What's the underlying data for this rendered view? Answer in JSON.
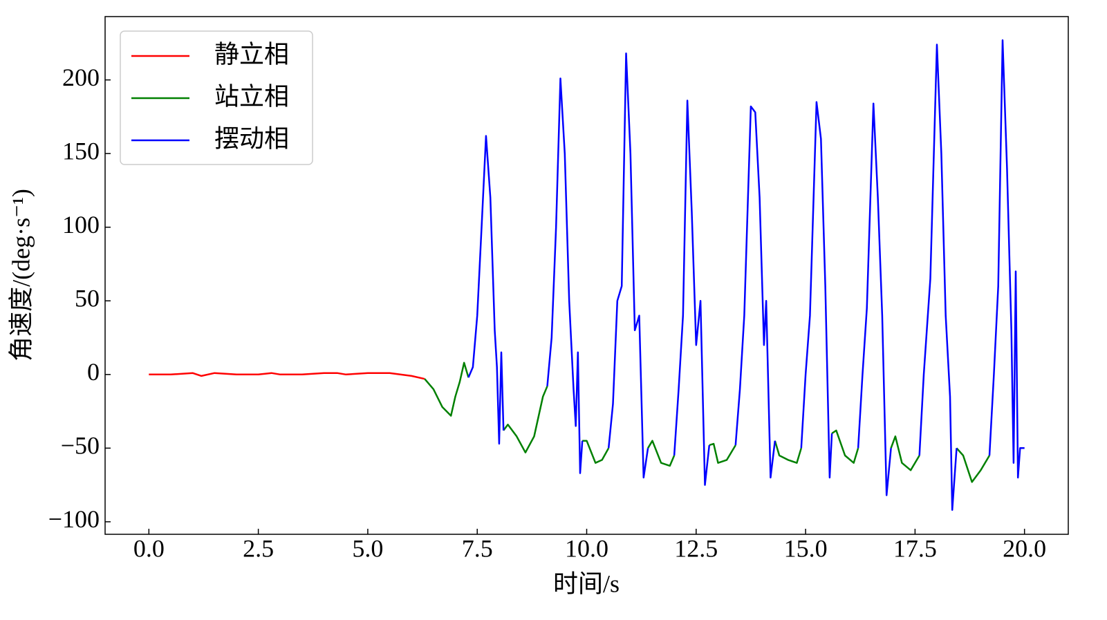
{
  "chart_data": {
    "type": "line",
    "xlabel": "时间/s",
    "ylabel": "角速度/(deg·s⁻¹)",
    "xlim": [
      -1.0,
      21.0
    ],
    "ylim": [
      -108.5,
      243
    ],
    "xticks": [
      {
        "value": 0,
        "label": "0.0"
      },
      {
        "value": 2.5,
        "label": "2.5"
      },
      {
        "value": 5,
        "label": "5.0"
      },
      {
        "value": 7.5,
        "label": "7.5"
      },
      {
        "value": 10,
        "label": "10.0"
      },
      {
        "value": 12.5,
        "label": "12.5"
      },
      {
        "value": 15,
        "label": "15.0"
      },
      {
        "value": 17.5,
        "label": "17.5"
      },
      {
        "value": 20,
        "label": "20.0"
      }
    ],
    "yticks": [
      {
        "value": -100,
        "label": "−100"
      },
      {
        "value": -50,
        "label": "−50"
      },
      0,
      50,
      100,
      150,
      200
    ],
    "legend": "upper left",
    "series": [
      {
        "name": "静立相",
        "color": "#ff0000",
        "x": [
          0,
          0.5,
          1,
          1.2,
          1.5,
          2,
          2.5,
          2.8,
          3,
          3.5,
          4,
          4.3,
          4.5,
          5,
          5.5,
          6,
          6.3
        ],
        "values": [
          0,
          0,
          1,
          -1,
          1,
          0,
          0,
          1,
          0,
          0,
          1,
          1,
          0,
          1,
          1,
          -1,
          -3
        ]
      },
      {
        "name": "站立相",
        "color": "#008000",
        "x": [
          6.3,
          6.5,
          6.7,
          6.9,
          7.0,
          7.1,
          7.2,
          7.3,
          null,
          8.1,
          8.2,
          8.4,
          8.6,
          8.8,
          9.0,
          9.1,
          null,
          9.9,
          10.0,
          10.2,
          10.35,
          10.5,
          null,
          11.4,
          11.5,
          11.7,
          11.9,
          12.0,
          null,
          12.8,
          12.9,
          13.0,
          13.2,
          13.4,
          null,
          14.3,
          14.4,
          14.6,
          14.8,
          14.9,
          null,
          15.6,
          15.7,
          15.9,
          16.1,
          16.2,
          null,
          16.95,
          17.05,
          17.2,
          17.4,
          17.6,
          null,
          18.45,
          18.6,
          18.8,
          19.0,
          19.2
        ],
        "values": [
          -3,
          -10,
          -22,
          -28,
          -15,
          -5,
          8,
          -2,
          null,
          -38,
          -34,
          -42,
          -53,
          -42,
          -15,
          -8,
          null,
          -45,
          -45,
          -60,
          -58,
          -50,
          null,
          -50,
          -45,
          -60,
          -62,
          -55,
          null,
          -48,
          -47,
          -60,
          -58,
          -48,
          null,
          -45,
          -55,
          -58,
          -60,
          -50,
          null,
          -40,
          -38,
          -55,
          -60,
          -50,
          null,
          -50,
          -42,
          -60,
          -65,
          -55,
          null,
          -50,
          -55,
          -73,
          -65,
          -55
        ]
      },
      {
        "name": "摆动相",
        "color": "#0000ff",
        "x": [
          7.3,
          7.4,
          7.5,
          7.6,
          7.7,
          7.8,
          7.9,
          7.95,
          8.0,
          8.05,
          8.1,
          null,
          9.1,
          9.2,
          9.3,
          9.4,
          9.5,
          9.6,
          9.7,
          9.75,
          9.8,
          9.85,
          9.9,
          null,
          10.5,
          10.6,
          10.7,
          10.8,
          10.9,
          11.0,
          11.1,
          11.2,
          11.3,
          11.4,
          null,
          12.0,
          12.1,
          12.2,
          12.3,
          12.4,
          12.5,
          12.6,
          12.7,
          12.8,
          null,
          13.4,
          13.5,
          13.6,
          13.75,
          13.85,
          13.95,
          14.05,
          14.1,
          14.2,
          14.3,
          null,
          14.9,
          15.0,
          15.1,
          15.25,
          15.35,
          15.45,
          15.55,
          15.6,
          null,
          16.2,
          16.3,
          16.4,
          16.55,
          16.65,
          16.75,
          16.85,
          16.95,
          null,
          17.6,
          17.7,
          17.85,
          18.0,
          18.1,
          18.2,
          18.3,
          18.35,
          18.45,
          null,
          19.2,
          19.3,
          19.4,
          19.5,
          19.6,
          19.7,
          19.75,
          19.8,
          19.85,
          19.9,
          20.0
        ],
        "values": [
          -2,
          5,
          40,
          100,
          162,
          120,
          30,
          5,
          -47,
          15,
          -38,
          null,
          -8,
          25,
          100,
          201,
          150,
          50,
          -10,
          -35,
          15,
          -67,
          -45,
          null,
          -50,
          -20,
          50,
          60,
          218,
          150,
          30,
          40,
          -70,
          -50,
          null,
          -55,
          -10,
          40,
          186,
          110,
          20,
          50,
          -75,
          -48,
          null,
          -48,
          -10,
          40,
          182,
          178,
          120,
          20,
          50,
          -70,
          -45,
          null,
          -50,
          0,
          40,
          185,
          160,
          60,
          -70,
          -40,
          null,
          -50,
          0,
          45,
          184,
          120,
          40,
          -82,
          -50,
          null,
          -55,
          0,
          65,
          224,
          150,
          40,
          -15,
          -92,
          -50,
          null,
          -55,
          0,
          60,
          227,
          140,
          30,
          -60,
          70,
          -70,
          -50,
          -50
        ]
      }
    ]
  }
}
